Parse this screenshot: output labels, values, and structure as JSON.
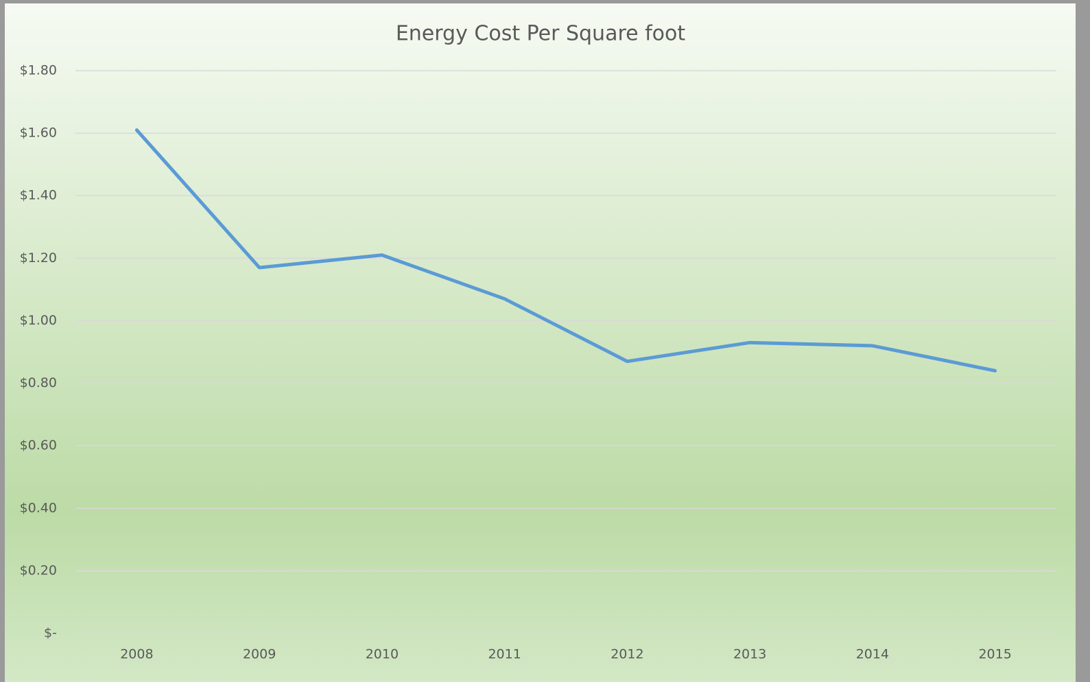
{
  "chart_data": {
    "type": "line",
    "title": "Energy Cost Per Square foot",
    "categories": [
      "2008",
      "2009",
      "2010",
      "2011",
      "2012",
      "2013",
      "2014",
      "2015"
    ],
    "series": [
      {
        "name": "Energy Cost Per Square foot",
        "color": "#5b9bd5",
        "values": [
          1.61,
          1.17,
          1.21,
          1.07,
          0.87,
          0.93,
          0.92,
          0.84
        ]
      }
    ],
    "ylim": [
      0,
      1.8
    ],
    "yticks": [
      {
        "value": 0,
        "label": "$-"
      },
      {
        "value": 0.2,
        "label": "$0.20"
      },
      {
        "value": 0.4,
        "label": "$0.40"
      },
      {
        "value": 0.6,
        "label": "$0.60"
      },
      {
        "value": 0.8,
        "label": "$0.80"
      },
      {
        "value": 1.0,
        "label": "$1.00"
      },
      {
        "value": 1.2,
        "label": "$1.20"
      },
      {
        "value": 1.4,
        "label": "$1.40"
      },
      {
        "value": 1.6,
        "label": "$1.60"
      },
      {
        "value": 1.8,
        "label": "$1.80"
      }
    ],
    "grid": true
  }
}
